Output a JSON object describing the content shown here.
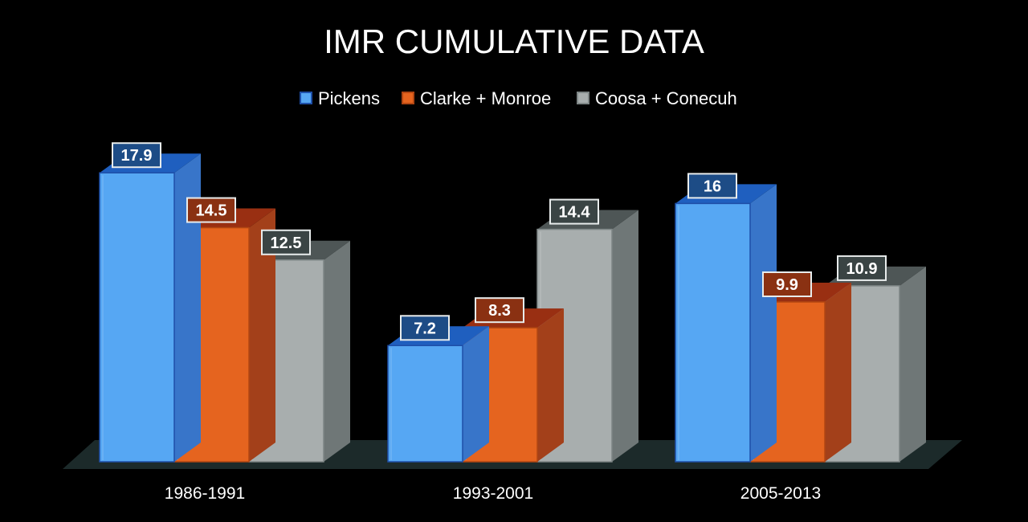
{
  "chart_data": {
    "type": "bar",
    "title": "IMR CUMULATIVE DATA",
    "xlabel": "",
    "ylabel": "",
    "categories": [
      "1986-1991",
      "1993-2001",
      "2005-2013"
    ],
    "series": [
      {
        "name": "Pickens",
        "values": [
          17.9,
          7.2,
          16
        ],
        "labels": [
          "17.9",
          "7.2",
          "16"
        ]
      },
      {
        "name": "Clarke + Monroe",
        "values": [
          14.5,
          8.3,
          9.9
        ],
        "labels": [
          "14.5",
          "8.3",
          "9.9"
        ]
      },
      {
        "name": "Coosa + Conecuh",
        "values": [
          12.5,
          14.4,
          10.9
        ],
        "labels": [
          "12.5",
          "14.4",
          "10.9"
        ]
      }
    ],
    "ylim": [
      0,
      20
    ],
    "grid": false,
    "legend": "top-center",
    "style": "3d-column"
  },
  "colors": {
    "background": "#000000",
    "text": "#ffffff",
    "floor": "#1c2a2a",
    "series": [
      {
        "front": "#56a7f3",
        "side": "#3875c9",
        "top": "#1f5fbf",
        "edge": "#1e4fa8",
        "label_bg": "#1d4c86"
      },
      {
        "front": "#e5641f",
        "side": "#a3401a",
        "top": "#992f12",
        "edge": "#b24612",
        "label_bg": "#8a3112"
      },
      {
        "front": "#a8aeae",
        "side": "#6f7777",
        "top": "#4e5656",
        "edge": "#7d8585",
        "label_bg": "#3a4444"
      }
    ]
  }
}
